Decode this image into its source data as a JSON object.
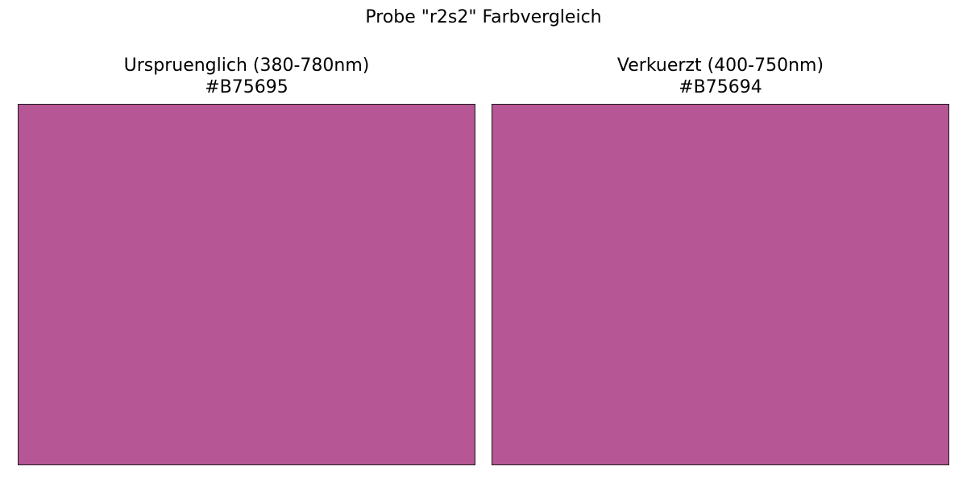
{
  "chart_data": {
    "type": "color-swatch",
    "title": "Probe \"r2s2\" Farbvergleich",
    "panels": [
      {
        "title": "Urspruenglich (380-780nm)",
        "hex_label": "#B75695",
        "color": "#B75695"
      },
      {
        "title": "Verkuerzt (400-750nm)",
        "hex_label": "#B75694",
        "color": "#B75694"
      }
    ]
  }
}
